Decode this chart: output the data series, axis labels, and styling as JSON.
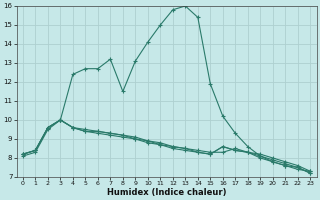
{
  "title": "",
  "xlabel": "Humidex (Indice chaleur)",
  "ylabel": "",
  "bg_color": "#c6e8e8",
  "grid_color": "#aed0d0",
  "line_color": "#2a7a6a",
  "xlim": [
    -0.5,
    23.5
  ],
  "ylim": [
    7,
    16
  ],
  "xticks": [
    0,
    1,
    2,
    3,
    4,
    5,
    6,
    7,
    8,
    9,
    10,
    11,
    12,
    13,
    14,
    15,
    16,
    17,
    18,
    19,
    20,
    21,
    22,
    23
  ],
  "yticks": [
    7,
    8,
    9,
    10,
    11,
    12,
    13,
    14,
    15,
    16
  ],
  "series1_x": [
    0,
    1,
    2,
    3,
    4,
    5,
    6,
    7,
    8,
    9,
    10,
    11,
    12,
    13,
    14,
    15,
    16,
    17,
    18,
    19,
    20,
    21,
    22,
    23
  ],
  "series1_y": [
    8.2,
    8.4,
    9.6,
    10.0,
    12.4,
    12.7,
    12.7,
    13.2,
    11.5,
    13.1,
    14.1,
    15.0,
    15.8,
    16.0,
    15.4,
    11.9,
    10.2,
    9.3,
    8.6,
    8.1,
    7.8,
    7.6,
    7.4,
    7.3
  ],
  "series2_x": [
    0,
    1,
    2,
    3,
    4,
    5,
    6,
    7,
    8,
    9,
    10,
    11,
    12,
    13,
    14,
    15,
    16,
    17,
    18,
    19,
    20,
    21,
    22,
    23
  ],
  "series2_y": [
    8.2,
    8.4,
    9.6,
    10.0,
    9.6,
    9.4,
    9.4,
    9.3,
    9.2,
    9.0,
    8.9,
    8.7,
    8.6,
    8.5,
    8.4,
    8.3,
    8.3,
    8.5,
    8.3,
    8.2,
    8.0,
    7.8,
    7.6,
    7.3
  ],
  "series3_x": [
    0,
    1,
    2,
    3,
    4,
    5,
    6,
    7,
    8,
    9,
    10,
    11,
    12,
    13,
    14,
    15,
    16,
    17,
    18,
    19,
    20,
    21,
    22,
    23
  ],
  "series3_y": [
    8.1,
    8.3,
    9.5,
    10.0,
    9.6,
    9.4,
    9.3,
    9.2,
    9.1,
    9.0,
    8.8,
    8.7,
    8.5,
    8.4,
    8.3,
    8.2,
    8.6,
    8.4,
    8.3,
    8.1,
    7.9,
    7.7,
    7.5,
    7.2
  ],
  "series4_x": [
    0,
    1,
    2,
    3,
    4,
    5,
    6,
    7,
    8,
    9,
    10,
    11,
    12,
    13,
    14,
    15,
    16,
    17,
    18,
    19,
    20,
    21,
    22,
    23
  ],
  "series4_y": [
    8.2,
    8.4,
    9.6,
    10.0,
    9.6,
    9.5,
    9.4,
    9.3,
    9.2,
    9.1,
    8.9,
    8.8,
    8.6,
    8.5,
    8.3,
    8.2,
    8.6,
    8.4,
    8.3,
    8.0,
    7.8,
    7.6,
    7.5,
    7.2
  ]
}
